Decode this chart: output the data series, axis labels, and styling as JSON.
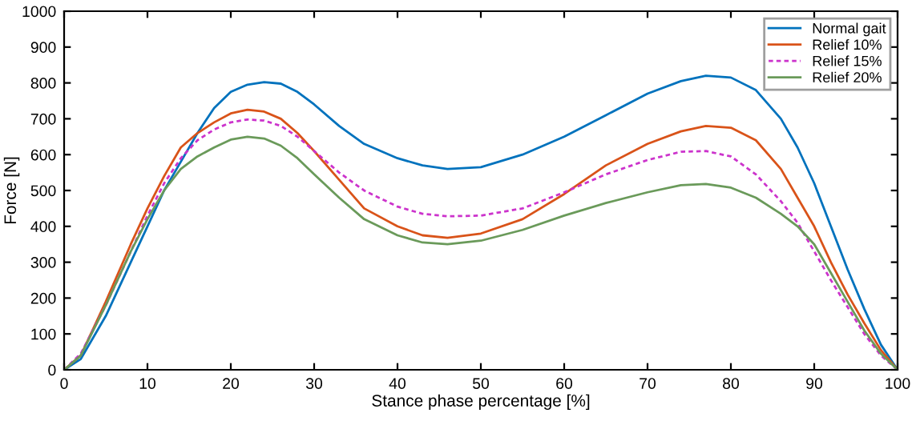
{
  "chart_data": {
    "type": "line",
    "xlabel": "Stance phase percentage [%]",
    "ylabel": "Force [N]",
    "x": [
      0,
      2,
      5,
      8,
      10,
      12,
      14,
      16,
      18,
      20,
      22,
      24,
      26,
      28,
      30,
      33,
      36,
      40,
      43,
      46,
      50,
      55,
      60,
      65,
      70,
      74,
      77,
      80,
      83,
      86,
      88,
      90,
      92,
      94,
      96,
      98,
      100
    ],
    "series": [
      {
        "name": "Normal gait",
        "color": "#0072bd",
        "line_style": "solid",
        "values": [
          0,
          30,
          150,
          300,
          400,
          500,
          580,
          660,
          730,
          775,
          795,
          802,
          798,
          775,
          740,
          680,
          630,
          590,
          570,
          560,
          565,
          600,
          650,
          710,
          770,
          805,
          820,
          815,
          780,
          700,
          620,
          520,
          400,
          280,
          170,
          70,
          0
        ]
      },
      {
        "name": "Relief 10%",
        "color": "#d95319",
        "line_style": "solid",
        "values": [
          0,
          40,
          190,
          350,
          450,
          540,
          620,
          660,
          690,
          715,
          725,
          720,
          700,
          660,
          610,
          530,
          450,
          400,
          375,
          368,
          380,
          420,
          490,
          570,
          630,
          665,
          680,
          675,
          640,
          560,
          480,
          400,
          300,
          210,
          130,
          55,
          0
        ]
      },
      {
        "name": "Relief 15%",
        "color": "#cc33cc",
        "line_style": "dotted",
        "values": [
          0,
          45,
          180,
          330,
          430,
          520,
          590,
          640,
          670,
          690,
          698,
          695,
          680,
          650,
          610,
          550,
          500,
          455,
          435,
          428,
          430,
          450,
          495,
          545,
          585,
          608,
          610,
          595,
          545,
          470,
          410,
          330,
          250,
          175,
          100,
          40,
          0
        ]
      },
      {
        "name": "Relief 20%",
        "color": "#6a9a5a",
        "line_style": "solid",
        "values": [
          0,
          40,
          180,
          330,
          420,
          500,
          560,
          595,
          620,
          642,
          650,
          645,
          625,
          590,
          545,
          480,
          420,
          375,
          355,
          350,
          360,
          390,
          430,
          465,
          495,
          515,
          518,
          508,
          480,
          435,
          400,
          350,
          270,
          190,
          110,
          45,
          0
        ]
      }
    ],
    "xlim": [
      0,
      100
    ],
    "xticks": [
      0,
      10,
      20,
      30,
      40,
      50,
      60,
      70,
      80,
      90,
      100
    ],
    "ylim": [
      0,
      1000
    ],
    "yticks": [
      0,
      100,
      200,
      300,
      400,
      500,
      600,
      700,
      800,
      900,
      1000
    ],
    "legend": "top right",
    "grid": false
  }
}
